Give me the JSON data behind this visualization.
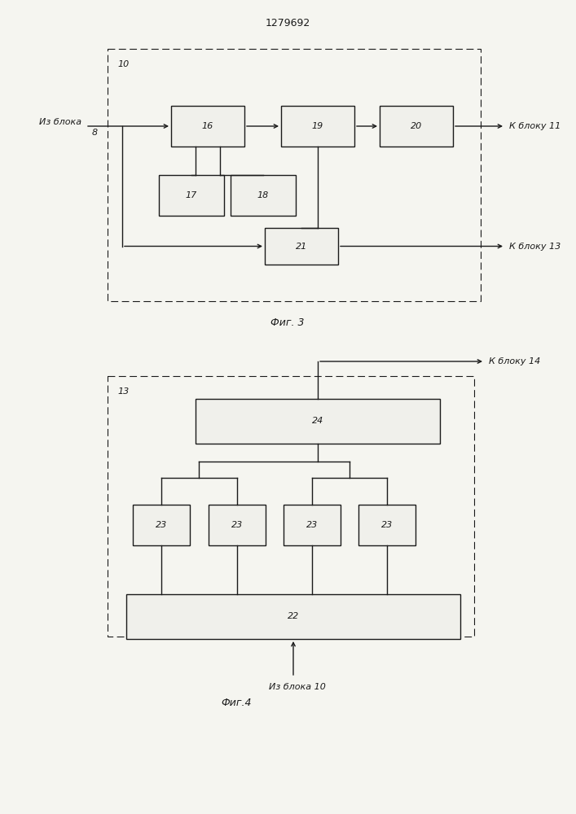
{
  "title": "1279692",
  "fig3_label": "Фиг. 3",
  "fig4_label": "Фиг.4",
  "bg_color": "#f5f5f0",
  "line_color": "#1a1a1a",
  "box_color": "#f0f0eb",
  "font_size_label": 8,
  "font_size_number": 8,
  "font_size_title": 9
}
